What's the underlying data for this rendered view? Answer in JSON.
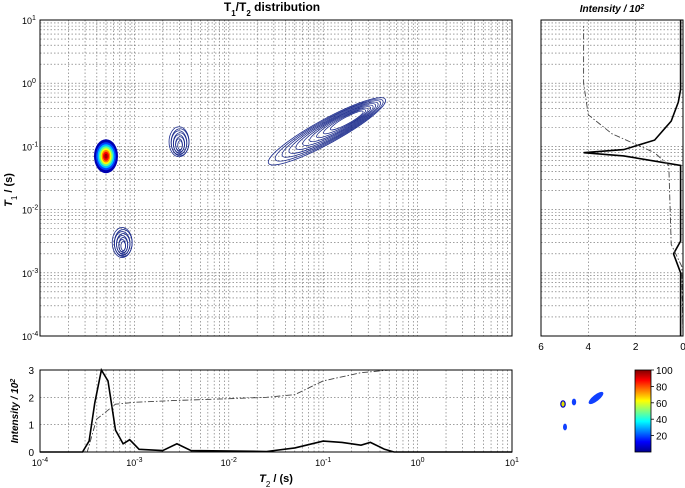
{
  "colors": {
    "contour": "#1a2a8c",
    "peak_hot": "#d40000",
    "profile_line": "#000000",
    "cumulative_line": "#444444",
    "colormap": [
      "#00008f",
      "#0000ff",
      "#0080ff",
      "#00ffff",
      "#80ff80",
      "#ffff00",
      "#ff8000",
      "#ff0000",
      "#800000"
    ]
  },
  "chart_data": [
    {
      "id": "main",
      "type": "contour",
      "title_parts": {
        "a": "T",
        "a_sub": "1",
        "b": "/T",
        "b_sub": "2",
        "rest": " distribution"
      },
      "ylabel": {
        "sym": "T",
        "sub": "1",
        "unit": " / (s)"
      },
      "x_log_range": [
        -4,
        1
      ],
      "y_log_range": [
        -4,
        1
      ],
      "y_ticks": [
        {
          "base": "10",
          "exp": "1",
          "e": 1
        },
        {
          "base": "10",
          "exp": "0",
          "e": 0
        },
        {
          "base": "10",
          "exp": "-1",
          "e": -1
        },
        {
          "base": "10",
          "exp": "-2",
          "e": -2
        },
        {
          "base": "10",
          "exp": "-3",
          "e": -3
        },
        {
          "base": "10",
          "exp": "-4",
          "e": -4
        }
      ],
      "grid": true,
      "peaks": [
        {
          "t2": 0.0005,
          "t1": 0.07,
          "shape": "hot-spot"
        },
        {
          "t2": 0.00075,
          "t1": 0.0028,
          "shape": "small"
        },
        {
          "t2": 0.003,
          "t1": 0.11,
          "shape": "small"
        },
        {
          "t2_range": [
            0.03,
            0.4
          ],
          "t1_range": [
            0.06,
            0.5
          ],
          "shape": "ridge"
        }
      ]
    },
    {
      "id": "t1-projection",
      "type": "line",
      "xlabel": "Intensity / 10",
      "xlabel_exp": "2",
      "x_ticks": [
        6,
        4,
        2,
        0
      ],
      "xlim": [
        6,
        0
      ],
      "y_log_range": [
        -4,
        1
      ],
      "series": [
        {
          "style": "solid",
          "points": [
            [
              0.1,
              -4
            ],
            [
              0.1,
              -3.0
            ],
            [
              0.4,
              -2.7
            ],
            [
              0.1,
              -2.5
            ],
            [
              0.1,
              -1.3
            ],
            [
              2.5,
              -1.15
            ],
            [
              4.2,
              -1.1
            ],
            [
              2.5,
              -1.05
            ],
            [
              1.2,
              -0.9
            ],
            [
              0.5,
              -0.6
            ],
            [
              0.2,
              -0.3
            ],
            [
              0.1,
              -0.1
            ],
            [
              0.1,
              1
            ]
          ]
        },
        {
          "style": "dashdot",
          "points": [
            [
              0,
              -4
            ],
            [
              0.05,
              -2.9
            ],
            [
              0.5,
              -2.55
            ],
            [
              0.6,
              -1.3
            ],
            [
              1.2,
              -1.1
            ],
            [
              3,
              -0.8
            ],
            [
              4.0,
              -0.5
            ],
            [
              4.2,
              0
            ],
            [
              4.2,
              0.9
            ]
          ]
        }
      ]
    },
    {
      "id": "t2-projection",
      "type": "line",
      "ylabel": "Intensity / 10",
      "ylabel_exp": "2",
      "xlabel": {
        "sym": "T",
        "sub": "2",
        "unit": " / (s)"
      },
      "x_ticks": [
        {
          "base": "10",
          "exp": "-4",
          "e": -4
        },
        {
          "base": "10",
          "exp": "-3",
          "e": -3
        },
        {
          "base": "10",
          "exp": "-2",
          "e": -2
        },
        {
          "base": "10",
          "exp": "-1",
          "e": -1
        },
        {
          "base": "10",
          "exp": "0",
          "e": 0
        },
        {
          "base": "10",
          "exp": "1",
          "e": 1
        }
      ],
      "y_ticks": [
        0,
        1,
        2,
        3
      ],
      "ylim": [
        0,
        3
      ],
      "x_log_range": [
        -4,
        1
      ],
      "series": [
        {
          "style": "solid",
          "points": [
            [
              -4,
              0
            ],
            [
              -3.55,
              0
            ],
            [
              -3.48,
              0.4
            ],
            [
              -3.42,
              1.8
            ],
            [
              -3.35,
              3.0
            ],
            [
              -3.28,
              2.6
            ],
            [
              -3.2,
              0.8
            ],
            [
              -3.12,
              0.3
            ],
            [
              -3.05,
              0.45
            ],
            [
              -2.95,
              0.1
            ],
            [
              -2.7,
              0.05
            ],
            [
              -2.55,
              0.3
            ],
            [
              -2.4,
              0.05
            ],
            [
              -1.6,
              0.02
            ],
            [
              -1.3,
              0.15
            ],
            [
              -1.0,
              0.4
            ],
            [
              -0.8,
              0.35
            ],
            [
              -0.6,
              0.25
            ],
            [
              -0.5,
              0.35
            ],
            [
              -0.35,
              0.1
            ],
            [
              -0.25,
              0
            ],
            [
              1,
              0
            ]
          ]
        },
        {
          "style": "dashdot",
          "points": [
            [
              -4,
              0
            ],
            [
              -3.5,
              0
            ],
            [
              -3.4,
              1.2
            ],
            [
              -3.2,
              1.75
            ],
            [
              -3.0,
              1.82
            ],
            [
              -2.6,
              1.88
            ],
            [
              -2.0,
              1.95
            ],
            [
              -1.6,
              2.0
            ],
            [
              -1.3,
              2.1
            ],
            [
              -1.0,
              2.6
            ],
            [
              -0.6,
              2.9
            ],
            [
              -0.3,
              3.0
            ],
            [
              1,
              3.0
            ]
          ]
        }
      ]
    },
    {
      "id": "colorbar",
      "type": "heatmap",
      "ticks": [
        "100",
        "80",
        "60",
        "40",
        "20"
      ],
      "range": [
        0,
        100
      ]
    }
  ]
}
